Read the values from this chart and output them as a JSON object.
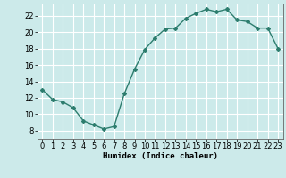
{
  "x": [
    0,
    1,
    2,
    3,
    4,
    5,
    6,
    7,
    8,
    9,
    10,
    11,
    12,
    13,
    14,
    15,
    16,
    17,
    18,
    19,
    20,
    21,
    22,
    23
  ],
  "y": [
    13.0,
    11.8,
    11.5,
    10.8,
    9.2,
    8.7,
    8.2,
    8.5,
    12.5,
    15.5,
    17.9,
    19.3,
    20.4,
    20.5,
    21.7,
    22.3,
    22.8,
    22.5,
    22.8,
    21.5,
    21.3,
    20.5,
    20.5,
    18.0
  ],
  "line_color": "#2d7d6e",
  "marker": "D",
  "markersize": 2.0,
  "bg_color": "#cceaea",
  "grid_color": "#ffffff",
  "xlabel": "Humidex (Indice chaleur)",
  "ylim": [
    7,
    23.5
  ],
  "xlim": [
    -0.5,
    23.5
  ],
  "yticks": [
    8,
    10,
    12,
    14,
    16,
    18,
    20,
    22
  ],
  "xticks": [
    0,
    1,
    2,
    3,
    4,
    5,
    6,
    7,
    8,
    9,
    10,
    11,
    12,
    13,
    14,
    15,
    16,
    17,
    18,
    19,
    20,
    21,
    22,
    23
  ],
  "xlabel_fontsize": 6.5,
  "tick_fontsize": 6.0,
  "linewidth": 1.0
}
